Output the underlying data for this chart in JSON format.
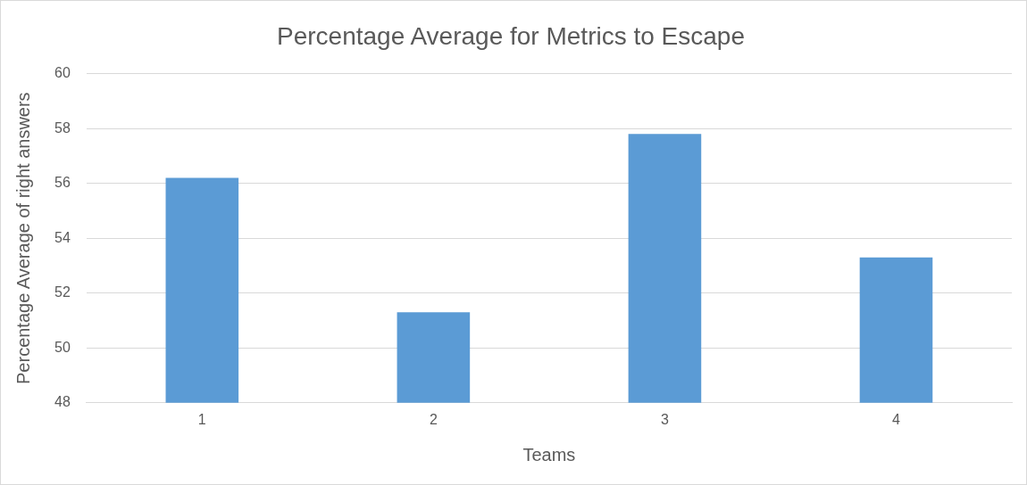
{
  "chart_data": {
    "type": "bar",
    "title": "Percentage Average for Metrics to Escape",
    "xlabel": "Teams",
    "ylabel": "Percentage Average of right answers",
    "categories": [
      "1",
      "2",
      "3",
      "4"
    ],
    "values": [
      56.2,
      51.3,
      57.8,
      53.3
    ],
    "color": "#5b9bd5",
    "ylim": [
      48,
      60
    ],
    "yticks": [
      48,
      50,
      52,
      54,
      56,
      58,
      60
    ],
    "grid": "y",
    "legend": false
  }
}
